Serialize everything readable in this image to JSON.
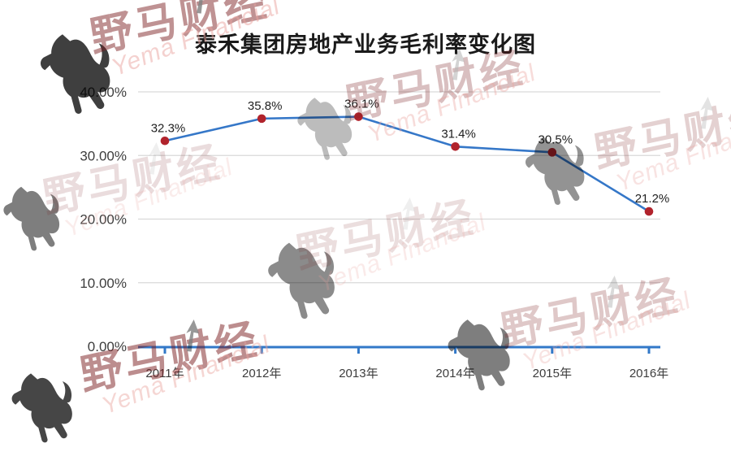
{
  "watermark": {
    "cn": "野马财经",
    "en": "Yema Financial"
  },
  "chart_data": {
    "type": "line",
    "title": "泰禾集团房地产业务毛利率变化图",
    "categories": [
      "2011年",
      "2012年",
      "2013年",
      "2014年",
      "2015年",
      "2016年"
    ],
    "values": [
      32.3,
      35.8,
      36.1,
      31.4,
      30.5,
      21.2
    ],
    "data_labels": [
      "32.3%",
      "35.8%",
      "36.1%",
      "31.4%",
      "30.5%",
      "21.2%"
    ],
    "xlabel": "",
    "ylabel": "",
    "ylim": [
      0,
      40
    ],
    "yticks": [
      0,
      10,
      20,
      30,
      40
    ],
    "ytick_labels": [
      "0.00%",
      "10.00%",
      "20.00%",
      "30.00%",
      "40.00%"
    ],
    "grid": true,
    "legend": "none",
    "line_color": "#3577c8",
    "point_color": "#b1232c",
    "axis_color": "#3278c8",
    "grid_color": "#d9d9d9"
  }
}
